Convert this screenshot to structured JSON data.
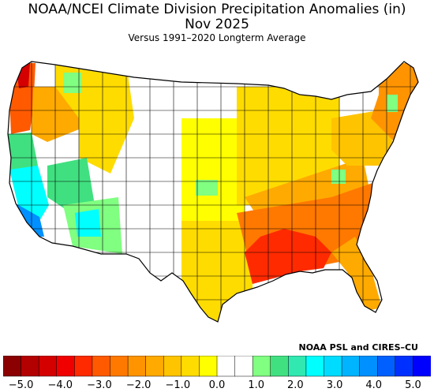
{
  "title_line1": "NOAA/NCEI Climate Division Precipitation Anomalies (in)",
  "title_line2": "Nov 2025",
  "subtitle": "Versus 1991–2020 Longterm Average",
  "credit": "NOAA PSL and CIRES–CU",
  "colorbar": {
    "colors": [
      "#8b0000",
      "#b30000",
      "#d40000",
      "#f00000",
      "#ff2a00",
      "#ff5a00",
      "#ff7800",
      "#ff9400",
      "#ffaa00",
      "#ffc400",
      "#ffdc00",
      "#ffff00",
      "#ffffff",
      "#ffffff",
      "#80ff80",
      "#40e080",
      "#30e8b0",
      "#00ffff",
      "#00dcff",
      "#00b4ff",
      "#0090ff",
      "#0060ff",
      "#0030ff",
      "#0000ff"
    ],
    "ticks": [
      "−5.0",
      "−4.0",
      "−3.0",
      "−2.0",
      "−1.0",
      "0.0",
      "1.0",
      "2.0",
      "3.0",
      "4.0",
      "5.0"
    ],
    "min": -5.0,
    "max": 5.0
  },
  "regions": [
    {
      "name": "pacific-northwest-coast",
      "color": "#ff5a00"
    },
    {
      "name": "washington-olympic",
      "color": "#d40000"
    },
    {
      "name": "oregon-interior",
      "color": "#ffaa00"
    },
    {
      "name": "northern-california-coast",
      "color": "#40e080"
    },
    {
      "name": "central-california",
      "color": "#00ffff"
    },
    {
      "name": "southern-california-coast",
      "color": "#0090ff"
    },
    {
      "name": "arizona",
      "color": "#80ff80"
    },
    {
      "name": "central-arizona",
      "color": "#00ffff"
    },
    {
      "name": "idaho-montana-west",
      "color": "#ffdc00"
    },
    {
      "name": "northern-plains",
      "color": "#ffffff"
    },
    {
      "name": "central-plains",
      "color": "#ffff00"
    },
    {
      "name": "kansas-green",
      "color": "#80ff80"
    },
    {
      "name": "great-lakes",
      "color": "#ffdc00"
    },
    {
      "name": "ohio-valley",
      "color": "#ffaa00"
    },
    {
      "name": "tennessee-valley",
      "color": "#ff7800"
    },
    {
      "name": "gulf-coast",
      "color": "#ff2a00"
    },
    {
      "name": "southeast",
      "color": "#ff7800"
    },
    {
      "name": "florida",
      "color": "#ffaa00"
    },
    {
      "name": "mid-atlantic",
      "color": "#ffc400"
    },
    {
      "name": "new-england",
      "color": "#ff9400"
    },
    {
      "name": "texas",
      "color": "#ffdc00"
    }
  ]
}
